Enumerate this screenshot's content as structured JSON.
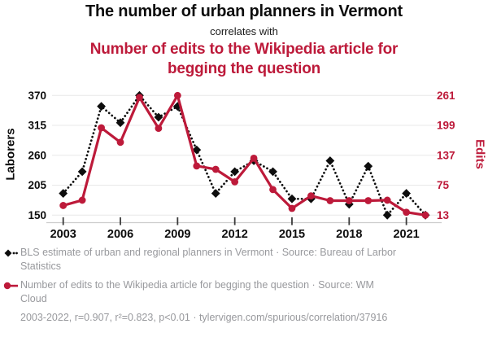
{
  "header": {
    "title": "The number of urban planners in Vermont",
    "connector": "correlates with",
    "subtitle": "Number of edits to the Wikipedia article for begging the question"
  },
  "chart_data": {
    "type": "line",
    "x": [
      2003,
      2004,
      2005,
      2006,
      2007,
      2008,
      2009,
      2010,
      2011,
      2012,
      2013,
      2014,
      2015,
      2016,
      2017,
      2018,
      2019,
      2020,
      2021,
      2022
    ],
    "x_tick_labels": [
      2003,
      2006,
      2009,
      2012,
      2015,
      2018,
      2021
    ],
    "series": [
      {
        "name": "BLS estimate of urban and regional planners in Vermont",
        "axis": "left",
        "style": "dotted-diamond",
        "color": "#0d0d0d",
        "values": [
          190,
          230,
          350,
          320,
          370,
          330,
          350,
          270,
          190,
          230,
          250,
          230,
          180,
          180,
          250,
          170,
          240,
          150,
          190,
          150
        ]
      },
      {
        "name": "Number of edits to the Wikipedia article for begging the question",
        "axis": "right",
        "style": "solid-circle",
        "color": "#bd1a3a",
        "values": [
          33,
          44,
          194,
          164,
          257,
          193,
          261,
          115,
          108,
          82,
          131,
          66,
          27,
          53,
          43,
          43,
          43,
          44,
          19,
          13
        ]
      }
    ],
    "left_axis": {
      "label": "Laborers",
      "ticks": [
        150,
        205,
        260,
        315,
        370
      ],
      "range": [
        150,
        370
      ]
    },
    "right_axis": {
      "label": "Edits",
      "ticks": [
        13,
        75,
        137,
        199,
        261
      ],
      "range": [
        13,
        261
      ]
    },
    "grid": true,
    "legend_position": "bottom-left"
  },
  "legend": {
    "items": [
      {
        "marker": "black-diamond-dotted",
        "label": "BLS estimate of urban and regional planners in Vermont · Source: Bureau of Larbor Statistics"
      },
      {
        "marker": "red-circle-solid",
        "label": "Number of edits to the Wikipedia article for begging the question · Source: WM Cloud"
      }
    ]
  },
  "footer": {
    "text": "2003-2022, r=0.907, r²=0.823, p<0.01 · tylervigen.com/spurious/correlation/37916"
  },
  "colors": {
    "accent_red": "#bd1a3a",
    "series_black": "#0d0d0d",
    "text_gray": "#98999d",
    "gridline": "#e8e8e8",
    "axis_line": "#cccccc",
    "tick_mark": "#3a3a3a"
  }
}
